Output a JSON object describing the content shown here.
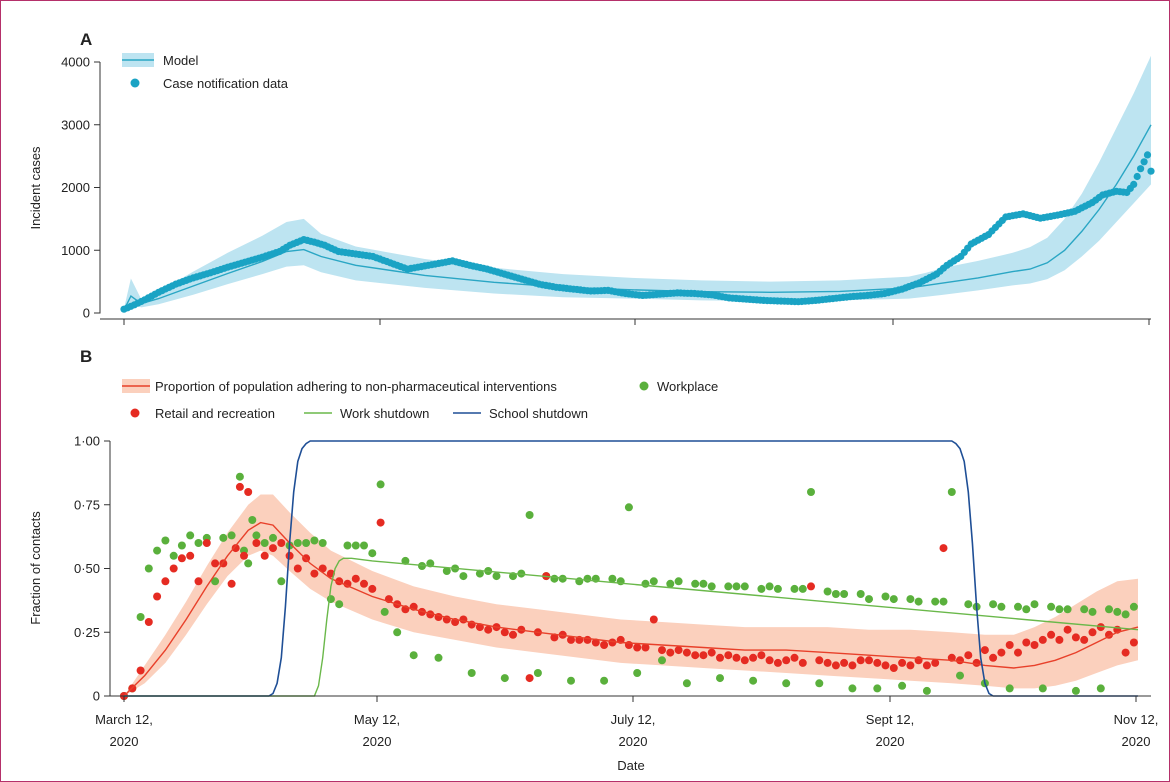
{
  "chart_data": [
    {
      "panel": "A",
      "type": "line",
      "ylabel": "Incident cases",
      "ylim": [
        0,
        4000
      ],
      "yticks": [
        "0",
        "1000",
        "2000",
        "3000",
        "4000"
      ],
      "xlim": [
        "2020-03-12",
        "2020-11-12"
      ],
      "legend": [
        "Model",
        "Case notification data"
      ],
      "colors": {
        "model": "#2aa6c4",
        "band": "#bde4f1",
        "points": "#1aa3c4"
      },
      "series": [
        {
          "name": "Model",
          "x": [
            0,
            2,
            5,
            10,
            20,
            30,
            40,
            47,
            52,
            57,
            67,
            87,
            107,
            127,
            147,
            167,
            187,
            207,
            227,
            232,
            237,
            247,
            257,
            262,
            267,
            272,
            277,
            282,
            287,
            292,
            297
          ],
          "values": [
            50,
            270,
            150,
            230,
            430,
            630,
            820,
            980,
            1010,
            900,
            760,
            600,
            490,
            410,
            370,
            340,
            330,
            345,
            400,
            440,
            480,
            560,
            660,
            700,
            800,
            1000,
            1300,
            1650,
            2050,
            2500,
            3000
          ],
          "lower": [
            30,
            150,
            90,
            140,
            290,
            460,
            620,
            740,
            760,
            650,
            520,
            400,
            310,
            250,
            230,
            200,
            190,
            200,
            230,
            260,
            290,
            360,
            440,
            470,
            540,
            680,
            900,
            1150,
            1450,
            1750,
            2050
          ],
          "upper": [
            70,
            550,
            220,
            340,
            660,
            960,
            1230,
            1450,
            1500,
            1260,
            1060,
            860,
            720,
            620,
            560,
            520,
            500,
            520,
            580,
            640,
            720,
            830,
            960,
            1050,
            1200,
            1500,
            1900,
            2400,
            2950,
            3500,
            4100
          ]
        },
        {
          "name": "Case notification data",
          "x": [
            0,
            3,
            6,
            10,
            15,
            20,
            25,
            30,
            35,
            40,
            45,
            48,
            52,
            55,
            58,
            62,
            67,
            72,
            77,
            82,
            85,
            90,
            95,
            100,
            105,
            110,
            115,
            120,
            125,
            130,
            135,
            140,
            145,
            150,
            155,
            160,
            165,
            170,
            175,
            180,
            185,
            190,
            195,
            200,
            205,
            210,
            215,
            220,
            225,
            230,
            235,
            238,
            242,
            245,
            250,
            255,
            260,
            265,
            270,
            275,
            280,
            283,
            287,
            290,
            292,
            294,
            296
          ],
          "values": [
            60,
            130,
            210,
            330,
            460,
            560,
            640,
            730,
            810,
            890,
            980,
            1080,
            1170,
            1130,
            1080,
            980,
            940,
            900,
            800,
            700,
            730,
            780,
            830,
            760,
            700,
            620,
            540,
            460,
            410,
            380,
            350,
            360,
            310,
            280,
            300,
            320,
            310,
            290,
            240,
            220,
            200,
            190,
            180,
            200,
            230,
            260,
            280,
            310,
            380,
            480,
            620,
            760,
            900,
            1100,
            1250,
            1530,
            1580,
            1510,
            1560,
            1620,
            1760,
            1880,
            1940,
            1920,
            2050,
            2300,
            2520
          ]
        }
      ]
    },
    {
      "panel": "B",
      "type": "scatter",
      "ylabel": "Fraction of contacts",
      "xlabel": "Date",
      "ylim": [
        0,
        1
      ],
      "yticks": [
        "0",
        "0·25",
        "0·50",
        "0·75",
        "1·00"
      ],
      "xticks": [
        {
          "line1": "March 12,",
          "line2": "2020",
          "day": 0
        },
        {
          "line1": "May 12,",
          "line2": "2020",
          "day": 61
        },
        {
          "line1": "July 12,",
          "line2": "2020",
          "day": 122
        },
        {
          "line1": "Sept 12,",
          "line2": "2020",
          "day": 184
        },
        {
          "line1": "Nov 12,",
          "line2": "2020",
          "day": 245
        }
      ],
      "legend": [
        "Proportion of population adhering to non-pharmaceutical interventions",
        "Workplace",
        "Retail and recreation",
        "Work shutdown",
        "School shutdown"
      ],
      "colors": {
        "adherence": "#e8402a",
        "band": "#fbd0bd",
        "workplace": "#5ab03c",
        "retail": "#e52b22",
        "work_shutdown": "#6ab84a",
        "school_shutdown": "#1f4f96"
      },
      "series": [
        {
          "name": "Proportion of population adhering to non-pharmaceutical interventions",
          "x": [
            0,
            5,
            10,
            15,
            20,
            25,
            30,
            33,
            36,
            40,
            45,
            50,
            60,
            70,
            80,
            90,
            100,
            110,
            120,
            130,
            140,
            150,
            160,
            170,
            180,
            190,
            200,
            208,
            215,
            220,
            225,
            230,
            235,
            240,
            245
          ],
          "values": [
            0.0,
            0.08,
            0.18,
            0.3,
            0.43,
            0.55,
            0.65,
            0.68,
            0.67,
            0.6,
            0.52,
            0.46,
            0.39,
            0.34,
            0.3,
            0.27,
            0.25,
            0.23,
            0.21,
            0.2,
            0.19,
            0.18,
            0.18,
            0.17,
            0.16,
            0.15,
            0.14,
            0.12,
            0.11,
            0.12,
            0.14,
            0.17,
            0.21,
            0.25,
            0.27
          ],
          "lower": [
            0.0,
            0.05,
            0.13,
            0.24,
            0.36,
            0.47,
            0.55,
            0.57,
            0.55,
            0.49,
            0.42,
            0.37,
            0.3,
            0.25,
            0.22,
            0.19,
            0.17,
            0.15,
            0.13,
            0.12,
            0.11,
            0.1,
            0.09,
            0.08,
            0.07,
            0.06,
            0.05,
            0.04,
            0.03,
            0.03,
            0.04,
            0.06,
            0.09,
            0.12,
            0.14
          ],
          "upper": [
            0.0,
            0.12,
            0.24,
            0.37,
            0.51,
            0.64,
            0.75,
            0.79,
            0.79,
            0.72,
            0.64,
            0.57,
            0.49,
            0.43,
            0.39,
            0.36,
            0.34,
            0.32,
            0.3,
            0.29,
            0.28,
            0.27,
            0.27,
            0.27,
            0.26,
            0.26,
            0.25,
            0.24,
            0.24,
            0.27,
            0.31,
            0.36,
            0.41,
            0.45,
            0.46
          ]
        },
        {
          "name": "Workplace",
          "x": [
            0,
            2,
            4,
            6,
            8,
            10,
            12,
            14,
            16,
            18,
            20,
            22,
            24,
            26,
            28,
            29,
            30,
            31,
            32,
            34,
            36,
            38,
            40,
            42,
            44,
            46,
            48,
            50,
            52,
            54,
            56,
            58,
            60,
            62,
            63,
            66,
            68,
            70,
            72,
            74,
            76,
            78,
            80,
            82,
            84,
            86,
            88,
            90,
            92,
            94,
            96,
            98,
            100,
            102,
            104,
            106,
            108,
            110,
            112,
            114,
            116,
            118,
            120,
            122,
            124,
            126,
            128,
            130,
            132,
            134,
            136,
            138,
            140,
            142,
            144,
            146,
            148,
            150,
            152,
            154,
            156,
            158,
            160,
            162,
            164,
            166,
            168,
            170,
            172,
            174,
            176,
            178,
            180,
            182,
            184,
            186,
            188,
            190,
            192,
            194,
            196,
            198,
            200,
            202,
            204,
            206,
            208,
            210,
            212,
            214,
            216,
            218,
            220,
            222,
            224,
            226,
            228,
            230,
            232,
            234,
            236,
            238,
            240,
            242,
            244
          ],
          "values": [
            0.0,
            0.03,
            0.31,
            0.5,
            0.57,
            0.61,
            0.55,
            0.59,
            0.63,
            0.6,
            0.62,
            0.45,
            0.62,
            0.63,
            0.86,
            0.57,
            0.52,
            0.69,
            0.63,
            0.6,
            0.62,
            0.45,
            0.59,
            0.6,
            0.6,
            0.61,
            0.6,
            0.38,
            0.36,
            0.59,
            0.59,
            0.59,
            0.56,
            0.83,
            0.33,
            0.25,
            0.53,
            0.16,
            0.51,
            0.52,
            0.15,
            0.49,
            0.5,
            0.47,
            0.09,
            0.48,
            0.49,
            0.47,
            0.07,
            0.47,
            0.48,
            0.71,
            0.09,
            0.47,
            0.46,
            0.46,
            0.06,
            0.45,
            0.46,
            0.46,
            0.06,
            0.46,
            0.45,
            0.74,
            0.09,
            0.44,
            0.45,
            0.14,
            0.44,
            0.45,
            0.05,
            0.44,
            0.44,
            0.43,
            0.07,
            0.43,
            0.43,
            0.43,
            0.06,
            0.42,
            0.43,
            0.42,
            0.05,
            0.42,
            0.42,
            0.8,
            0.05,
            0.41,
            0.4,
            0.4,
            0.03,
            0.4,
            0.38,
            0.03,
            0.39,
            0.38,
            0.04,
            0.38,
            0.37,
            0.02,
            0.37,
            0.37,
            0.8,
            0.08,
            0.36,
            0.35,
            0.05,
            0.36,
            0.35,
            0.03,
            0.35,
            0.34,
            0.36,
            0.03,
            0.35,
            0.34,
            0.34,
            0.02,
            0.34,
            0.33,
            0.03,
            0.34,
            0.33,
            0.32,
            0.35
          ],
          "outliers_removed": false
        },
        {
          "name": "Retail and recreation",
          "x": [
            0,
            2,
            4,
            6,
            8,
            10,
            12,
            14,
            16,
            18,
            20,
            22,
            24,
            26,
            27,
            28,
            29,
            30,
            32,
            34,
            36,
            38,
            40,
            42,
            44,
            46,
            48,
            50,
            52,
            54,
            56,
            58,
            60,
            62,
            64,
            66,
            68,
            70,
            72,
            74,
            76,
            78,
            80,
            82,
            84,
            86,
            88,
            90,
            92,
            94,
            96,
            98,
            100,
            102,
            104,
            106,
            108,
            110,
            112,
            114,
            116,
            118,
            120,
            122,
            124,
            126,
            128,
            130,
            132,
            134,
            136,
            138,
            140,
            142,
            144,
            146,
            148,
            150,
            152,
            154,
            156,
            158,
            160,
            162,
            164,
            166,
            168,
            170,
            172,
            174,
            176,
            178,
            180,
            182,
            184,
            186,
            188,
            190,
            192,
            194,
            196,
            198,
            200,
            202,
            204,
            206,
            208,
            210,
            212,
            214,
            216,
            218,
            220,
            222,
            224,
            226,
            228,
            230,
            232,
            234,
            236,
            238,
            240,
            242,
            244
          ],
          "values": [
            0.0,
            0.03,
            0.1,
            0.29,
            0.39,
            0.45,
            0.5,
            0.54,
            0.55,
            0.45,
            0.6,
            0.52,
            0.52,
            0.44,
            0.58,
            0.82,
            0.55,
            0.8,
            0.6,
            0.55,
            0.58,
            0.6,
            0.55,
            0.5,
            0.54,
            0.48,
            0.5,
            0.48,
            0.45,
            0.44,
            0.46,
            0.44,
            0.42,
            0.68,
            0.38,
            0.36,
            0.34,
            0.35,
            0.33,
            0.32,
            0.31,
            0.3,
            0.29,
            0.3,
            0.28,
            0.27,
            0.26,
            0.27,
            0.25,
            0.24,
            0.26,
            0.07,
            0.25,
            0.47,
            0.23,
            0.24,
            0.22,
            0.22,
            0.22,
            0.21,
            0.2,
            0.21,
            0.22,
            0.2,
            0.19,
            0.19,
            0.3,
            0.18,
            0.17,
            0.18,
            0.17,
            0.16,
            0.16,
            0.17,
            0.15,
            0.16,
            0.15,
            0.14,
            0.15,
            0.16,
            0.14,
            0.13,
            0.14,
            0.15,
            0.13,
            0.43,
            0.14,
            0.13,
            0.12,
            0.13,
            0.12,
            0.14,
            0.14,
            0.13,
            0.12,
            0.11,
            0.13,
            0.12,
            0.14,
            0.12,
            0.13,
            0.58,
            0.15,
            0.14,
            0.16,
            0.13,
            0.18,
            0.15,
            0.17,
            0.2,
            0.17,
            0.21,
            0.2,
            0.22,
            0.24,
            0.22,
            0.26,
            0.23,
            0.22,
            0.25,
            0.27,
            0.24,
            0.26,
            0.17,
            0.21
          ]
        },
        {
          "name": "Work shutdown",
          "x": [
            0,
            46,
            47,
            48,
            49,
            50,
            51,
            52,
            53,
            55,
            60,
            245
          ],
          "values": [
            0.0,
            0.0,
            0.04,
            0.15,
            0.3,
            0.43,
            0.5,
            0.53,
            0.54,
            0.54,
            0.53,
            0.26
          ]
        },
        {
          "name": "School shutdown",
          "x": [
            0,
            35,
            36,
            37,
            38,
            39,
            40,
            41,
            42,
            43,
            44,
            45,
            200,
            201,
            202,
            203,
            204,
            205,
            206,
            207,
            208,
            209,
            210,
            245
          ],
          "values": [
            0.0,
            0.0,
            0.01,
            0.05,
            0.15,
            0.35,
            0.6,
            0.8,
            0.92,
            0.97,
            0.99,
            1.0,
            1.0,
            0.99,
            0.97,
            0.92,
            0.8,
            0.6,
            0.35,
            0.15,
            0.05,
            0.01,
            0.0,
            0.0
          ]
        }
      ]
    }
  ],
  "panel_labels": {
    "a": "A",
    "b": "B"
  }
}
